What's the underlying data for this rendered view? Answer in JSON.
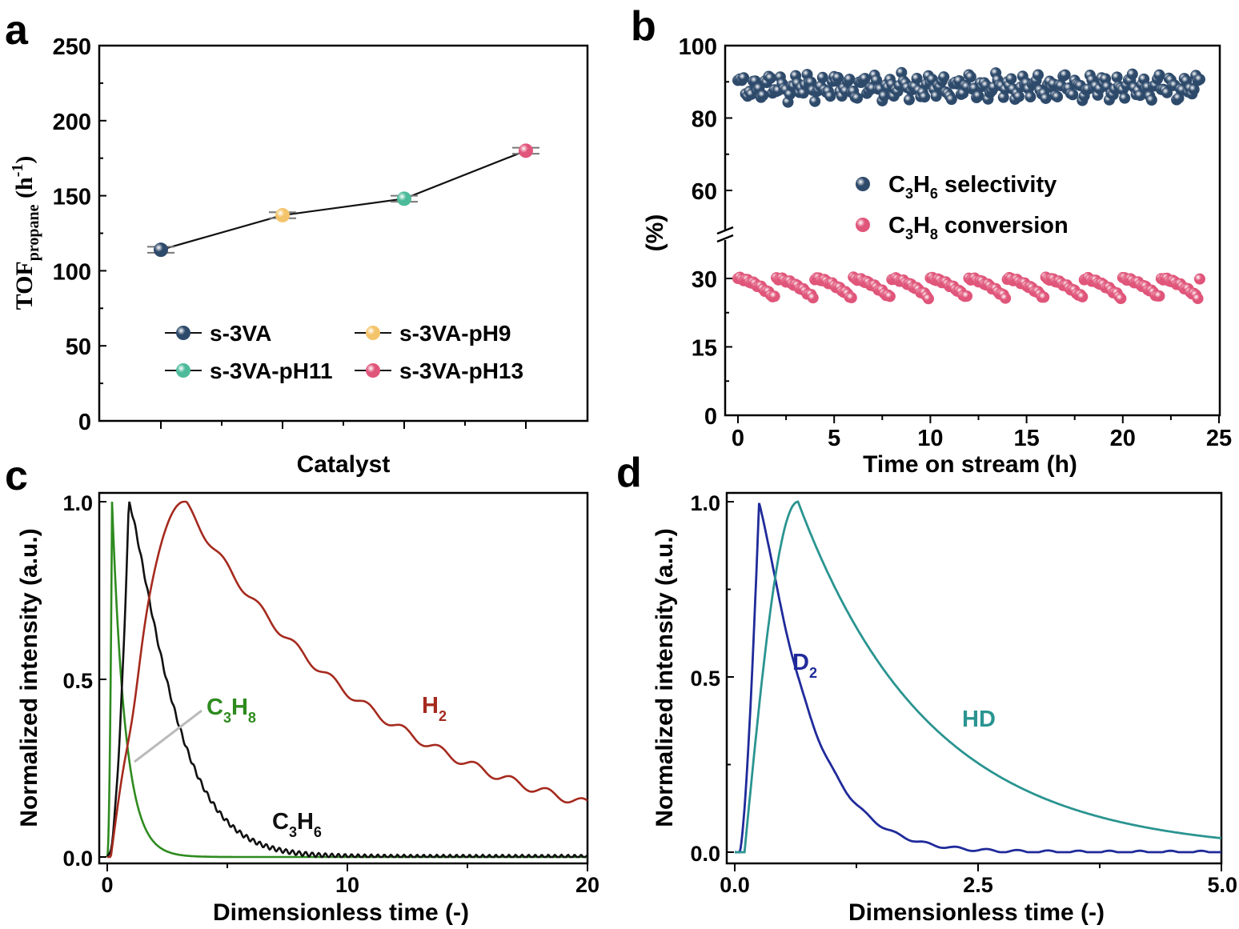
{
  "chart_data": [
    {
      "panel": "a",
      "type": "line",
      "xlabel": "Catalyst",
      "ylabel": "TOF",
      "ylabel_sub": "propane",
      "ylabel_unit_open": " (h",
      "ylabel_unit_sup": "-1",
      "ylabel_unit_close": ")",
      "ylim": [
        0,
        250
      ],
      "yticks": [
        "0",
        "50",
        "100",
        "150",
        "200",
        "250"
      ],
      "categories": [
        "s-3VA",
        "s-3VA-pH9",
        "s-3VA-pH11",
        "s-3VA-pH13"
      ],
      "values": [
        114,
        137,
        148,
        180
      ],
      "errors": [
        2,
        2,
        2,
        2
      ],
      "colors": [
        "#2e4a6b",
        "#f4c46a",
        "#4dbb9a",
        "#e0557a"
      ],
      "legend": [
        {
          "label": "s-3VA"
        },
        {
          "label": "s-3VA-pH9"
        },
        {
          "label": "s-3VA-pH11"
        },
        {
          "label": "s-3VA-pH13"
        }
      ]
    },
    {
      "panel": "b",
      "type": "scatter",
      "xlabel": "Time on stream (h)",
      "ylabel": "(%)",
      "xlim": [
        0,
        25
      ],
      "xticks": [
        "0",
        "5",
        "10",
        "15",
        "20",
        "25"
      ],
      "yticks_upper": [
        "60",
        "80",
        "100"
      ],
      "yticks_lower": [
        "0",
        "15",
        "30"
      ],
      "series": [
        {
          "name_main": "C",
          "name_sub1": "3",
          "name_mid": "H",
          "name_sub2": "6",
          "name_rest": " selectivity",
          "color": "#2e4a6b",
          "range": [
            84,
            93
          ]
        },
        {
          "name_main": "C",
          "name_sub1": "3",
          "name_mid": "H",
          "name_sub2": "8",
          "name_rest": " conversion",
          "color": "#e0557a",
          "range": [
            25,
            30
          ]
        }
      ]
    },
    {
      "panel": "c",
      "type": "line",
      "xlabel": "Dimensionless time (-)",
      "ylabel": "Normalized intensity (a.u.)",
      "xlim": [
        0,
        20
      ],
      "ylim": [
        0,
        1
      ],
      "xticks": [
        "0",
        "10",
        "20"
      ],
      "yticks": [
        "0.0",
        "0.5",
        "1.0"
      ],
      "series": [
        {
          "label_main": "C",
          "label_s1": "3",
          "label_mid": "H",
          "label_s2": "8",
          "color": "#2e8b1f",
          "peak_x": 0.2
        },
        {
          "label_main": "C",
          "label_s1": "3",
          "label_mid": "H",
          "label_s2": "6",
          "color": "#111111",
          "peak_x": 0.9
        },
        {
          "label_main": "H",
          "label_s1": "2",
          "label_mid": "",
          "label_s2": "",
          "color": "#a52a1e",
          "peak_x": 3.2,
          "end_y": 0.15
        }
      ]
    },
    {
      "panel": "d",
      "type": "line",
      "xlabel": "Dimensionless time (-)",
      "ylabel": "Normalized intensity (a.u.)",
      "xlim": [
        0,
        5
      ],
      "ylim": [
        0,
        1
      ],
      "xticks": [
        "0.0",
        "2.5",
        "5.0"
      ],
      "yticks": [
        "0.0",
        "0.5",
        "1.0"
      ],
      "series": [
        {
          "label_main": "D",
          "label_s1": "2",
          "color": "#1f2a9a",
          "peak_x": 0.25
        },
        {
          "label_main": "HD",
          "label_s1": "",
          "color": "#2a9490",
          "peak_x": 0.65,
          "end_y": 0.04
        }
      ]
    }
  ],
  "panel_letters": [
    "a",
    "b",
    "c",
    "d"
  ]
}
